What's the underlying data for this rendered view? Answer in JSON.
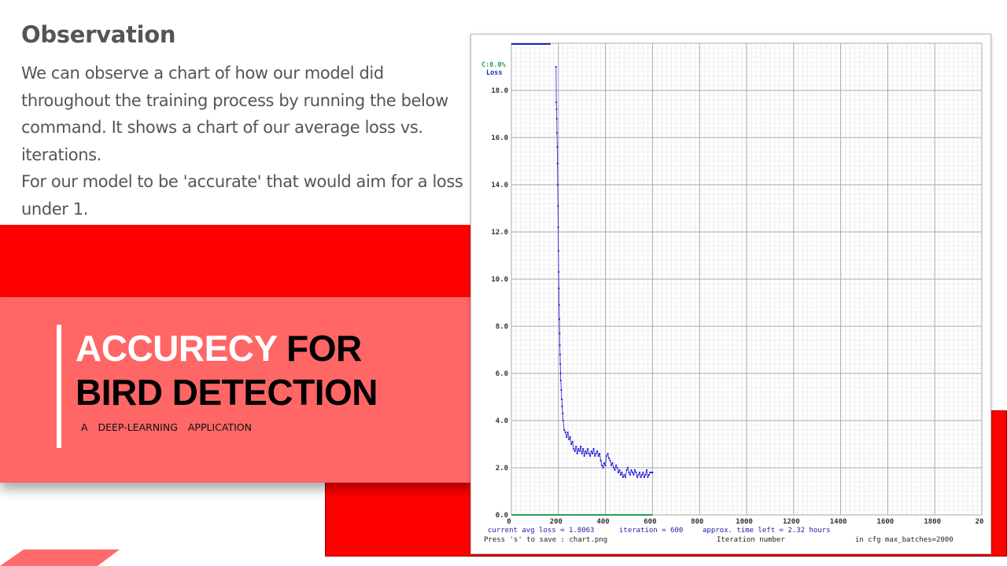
{
  "observation": {
    "title": "Observation",
    "para1": "We can observe a chart of how our model did throughout the training process by running the below command. It shows a chart of our average loss vs. iterations.",
    "para2": "For our model to be 'accurate' that would aim for a loss under 1."
  },
  "hero": {
    "line1_white": "ACCUREC",
    "line1_white_y": "Y ",
    "line1_black": "FOR",
    "line2": "BIRD DETECTION",
    "subtitle": "A DEEP-LEARNING APPLICATION"
  },
  "colors": {
    "red": "#ff0000",
    "pink": "#ff6666",
    "text_gray": "#555555",
    "loss_blue": "#1f1fe0",
    "map_green": "#2a9d5c"
  },
  "chart_data": {
    "type": "scatter",
    "legend": [
      "C:0.0%",
      "Loss"
    ],
    "xlim": [
      0,
      2000
    ],
    "ylim": [
      0,
      20
    ],
    "x_ticks": [
      "0",
      "200",
      "400",
      "600",
      "800",
      "1000",
      "1200",
      "1400",
      "1600",
      "1800",
      "20"
    ],
    "y_ticks": [
      "0.0",
      "2.0",
      "4.0",
      "6.0",
      "8.0",
      "10.0",
      "12.0",
      "14.0",
      "16.0",
      "18.0"
    ],
    "xlabel": "Iteration number",
    "footer": {
      "current_loss": "current avg loss = 1.8063",
      "iteration": "iteration = 600",
      "time_left": "approx. time left = 2.32 hours",
      "save_hint": "Press 's' to save : chart.png",
      "max_batches": "in cfg max_batches=2000"
    },
    "series": [
      {
        "x": [
          190,
          191,
          192,
          193,
          194,
          195,
          196,
          197,
          198,
          199,
          200,
          201,
          202,
          203,
          204,
          205,
          206,
          207,
          208,
          209,
          210,
          212,
          214,
          216,
          218,
          220,
          225,
          230,
          235,
          240,
          245,
          250,
          255,
          260,
          265,
          270,
          275,
          280,
          285,
          290,
          295,
          300,
          305,
          310,
          315,
          320,
          325,
          330,
          335,
          340,
          345,
          350,
          355,
          360,
          365,
          370,
          375,
          380,
          385,
          390,
          395,
          400,
          405,
          410,
          415,
          420,
          425,
          430,
          435,
          440,
          445,
          450,
          455,
          460,
          465,
          470,
          475,
          480,
          485,
          490,
          495,
          500,
          505,
          510,
          515,
          520,
          525,
          530,
          535,
          540,
          545,
          550,
          555,
          560,
          565,
          570,
          575,
          580,
          585,
          590,
          595,
          600
        ],
        "y": [
          19.0,
          17.5,
          17.2,
          16.8,
          16.2,
          15.6,
          14.9,
          14.0,
          13.1,
          12.2,
          11.2,
          10.3,
          9.6,
          8.9,
          8.3,
          7.7,
          7.2,
          6.8,
          6.4,
          6.0,
          5.7,
          5.3,
          4.9,
          4.6,
          4.3,
          4.0,
          3.6,
          3.5,
          3.3,
          3.5,
          3.2,
          3.3,
          3.0,
          3.1,
          2.8,
          2.7,
          2.9,
          2.6,
          2.8,
          2.7,
          2.9,
          2.6,
          2.8,
          2.5,
          2.7,
          2.6,
          2.8,
          2.6,
          2.5,
          2.7,
          2.6,
          2.8,
          2.5,
          2.6,
          2.7,
          2.5,
          2.6,
          2.3,
          2.1,
          2.0,
          2.2,
          2.1,
          2.5,
          2.6,
          2.4,
          2.3,
          2.1,
          2.2,
          2.0,
          1.9,
          2.1,
          2.0,
          1.8,
          1.9,
          1.7,
          1.8,
          1.6,
          1.7,
          1.6,
          1.9,
          2.0,
          1.8,
          1.7,
          1.9,
          1.8,
          1.7,
          1.9,
          1.8,
          1.6,
          1.7,
          1.8,
          1.6,
          1.7,
          1.8,
          1.6,
          1.7,
          1.9,
          1.6,
          1.7,
          1.8,
          1.8,
          1.8
        ]
      }
    ]
  }
}
